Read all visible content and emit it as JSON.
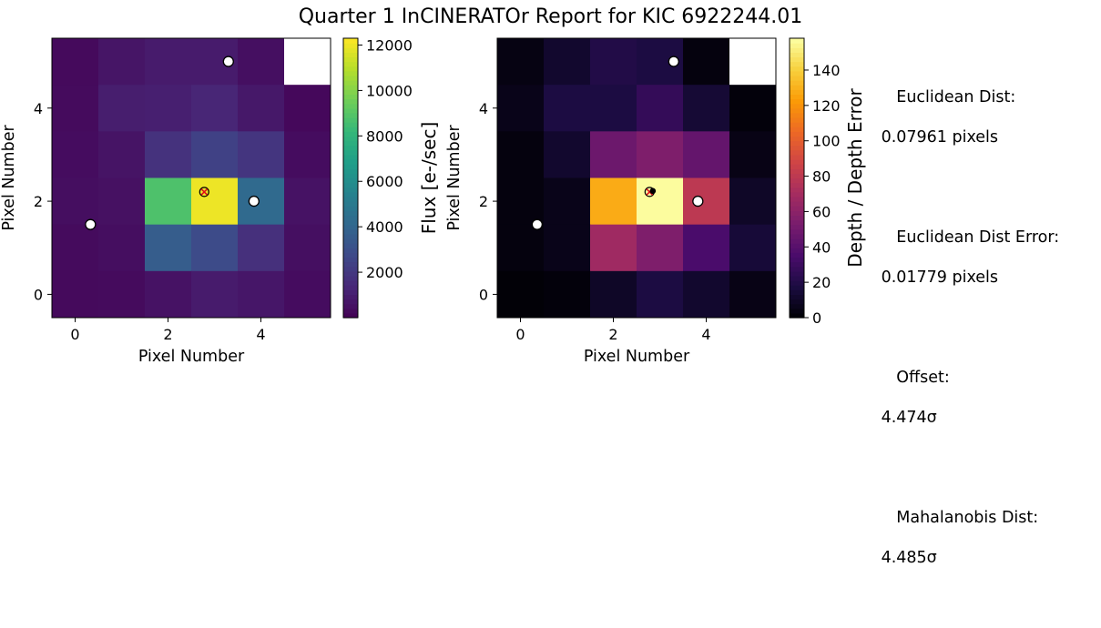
{
  "title": "Quarter 1 InCINERATOr Report for KIC 6922244.01",
  "chart_data": [
    {
      "type": "heatmap",
      "name": "flux",
      "xlabel": "Pixel Number",
      "ylabel": "Pixel Number",
      "xlim": [
        -0.5,
        5.5
      ],
      "ylim": [
        -0.5,
        5.5
      ],
      "xticks": [
        0,
        2,
        4
      ],
      "yticks": [
        0,
        2,
        4
      ],
      "grid": false,
      "colormap": "viridis",
      "colorbar": {
        "label": "Flux [e-/sec]",
        "range": [
          0,
          12300
        ],
        "ticks": [
          2000,
          4000,
          6000,
          8000,
          10000,
          12000
        ]
      },
      "rows_top_to_bottom_y": [
        5,
        4,
        3,
        2,
        1,
        0
      ],
      "values": [
        [
          300,
          700,
          900,
          900,
          500,
          null
        ],
        [
          350,
          1000,
          1050,
          1300,
          800,
          250
        ],
        [
          400,
          650,
          1800,
          2400,
          1900,
          400
        ],
        [
          450,
          550,
          8800,
          12000,
          4200,
          600
        ],
        [
          350,
          450,
          3600,
          2800,
          1700,
          500
        ],
        [
          300,
          350,
          600,
          900,
          750,
          400
        ]
      ],
      "markers": [
        {
          "kind": "white-circle",
          "x": 0.33,
          "y": 1.5
        },
        {
          "kind": "white-circle",
          "x": 3.3,
          "y": 5.0
        },
        {
          "kind": "white-circle",
          "x": 3.85,
          "y": 2.0
        },
        {
          "kind": "red-x-target",
          "x": 2.78,
          "y": 2.2
        }
      ]
    },
    {
      "type": "heatmap",
      "name": "depth-significance",
      "xlabel": "Pixel Number",
      "ylabel": "Pixel Number",
      "xlim": [
        -0.5,
        5.5
      ],
      "ylim": [
        -0.5,
        5.5
      ],
      "xticks": [
        0,
        2,
        4
      ],
      "yticks": [
        0,
        2,
        4
      ],
      "grid": false,
      "colormap": "inferno",
      "colorbar": {
        "label": "Depth / Depth Error",
        "range": [
          0,
          158
        ],
        "ticks": [
          0,
          20,
          40,
          60,
          80,
          100,
          120,
          140
        ]
      },
      "rows_top_to_bottom_y": [
        5,
        4,
        3,
        2,
        1,
        0
      ],
      "values": [
        [
          4,
          12,
          20,
          18,
          3,
          null
        ],
        [
          6,
          18,
          18,
          27,
          14,
          2
        ],
        [
          3,
          12,
          48,
          55,
          45,
          5
        ],
        [
          3,
          6,
          128,
          157,
          80,
          10
        ],
        [
          3,
          6,
          68,
          55,
          35,
          15
        ],
        [
          1,
          2,
          10,
          18,
          12,
          5
        ]
      ],
      "markers": [
        {
          "kind": "white-circle",
          "x": 0.36,
          "y": 1.5
        },
        {
          "kind": "white-circle",
          "x": 3.3,
          "y": 5.0
        },
        {
          "kind": "white-circle",
          "x": 3.82,
          "y": 2.0
        },
        {
          "kind": "red-x-target",
          "x": 2.78,
          "y": 2.2
        },
        {
          "kind": "black-dot",
          "x": 2.85,
          "y": 2.22
        }
      ]
    }
  ],
  "stats": [
    {
      "label": "Euclidean Dist:",
      "value": " 0.07961 pixels"
    },
    {
      "label": "Euclidean Dist Error:",
      "value": " 0.01779 pixels"
    },
    {
      "label": "Offset:",
      "value": " 4.474σ"
    },
    {
      "label": "Mahalanobis Dist:",
      "value": " 4.485σ"
    }
  ]
}
